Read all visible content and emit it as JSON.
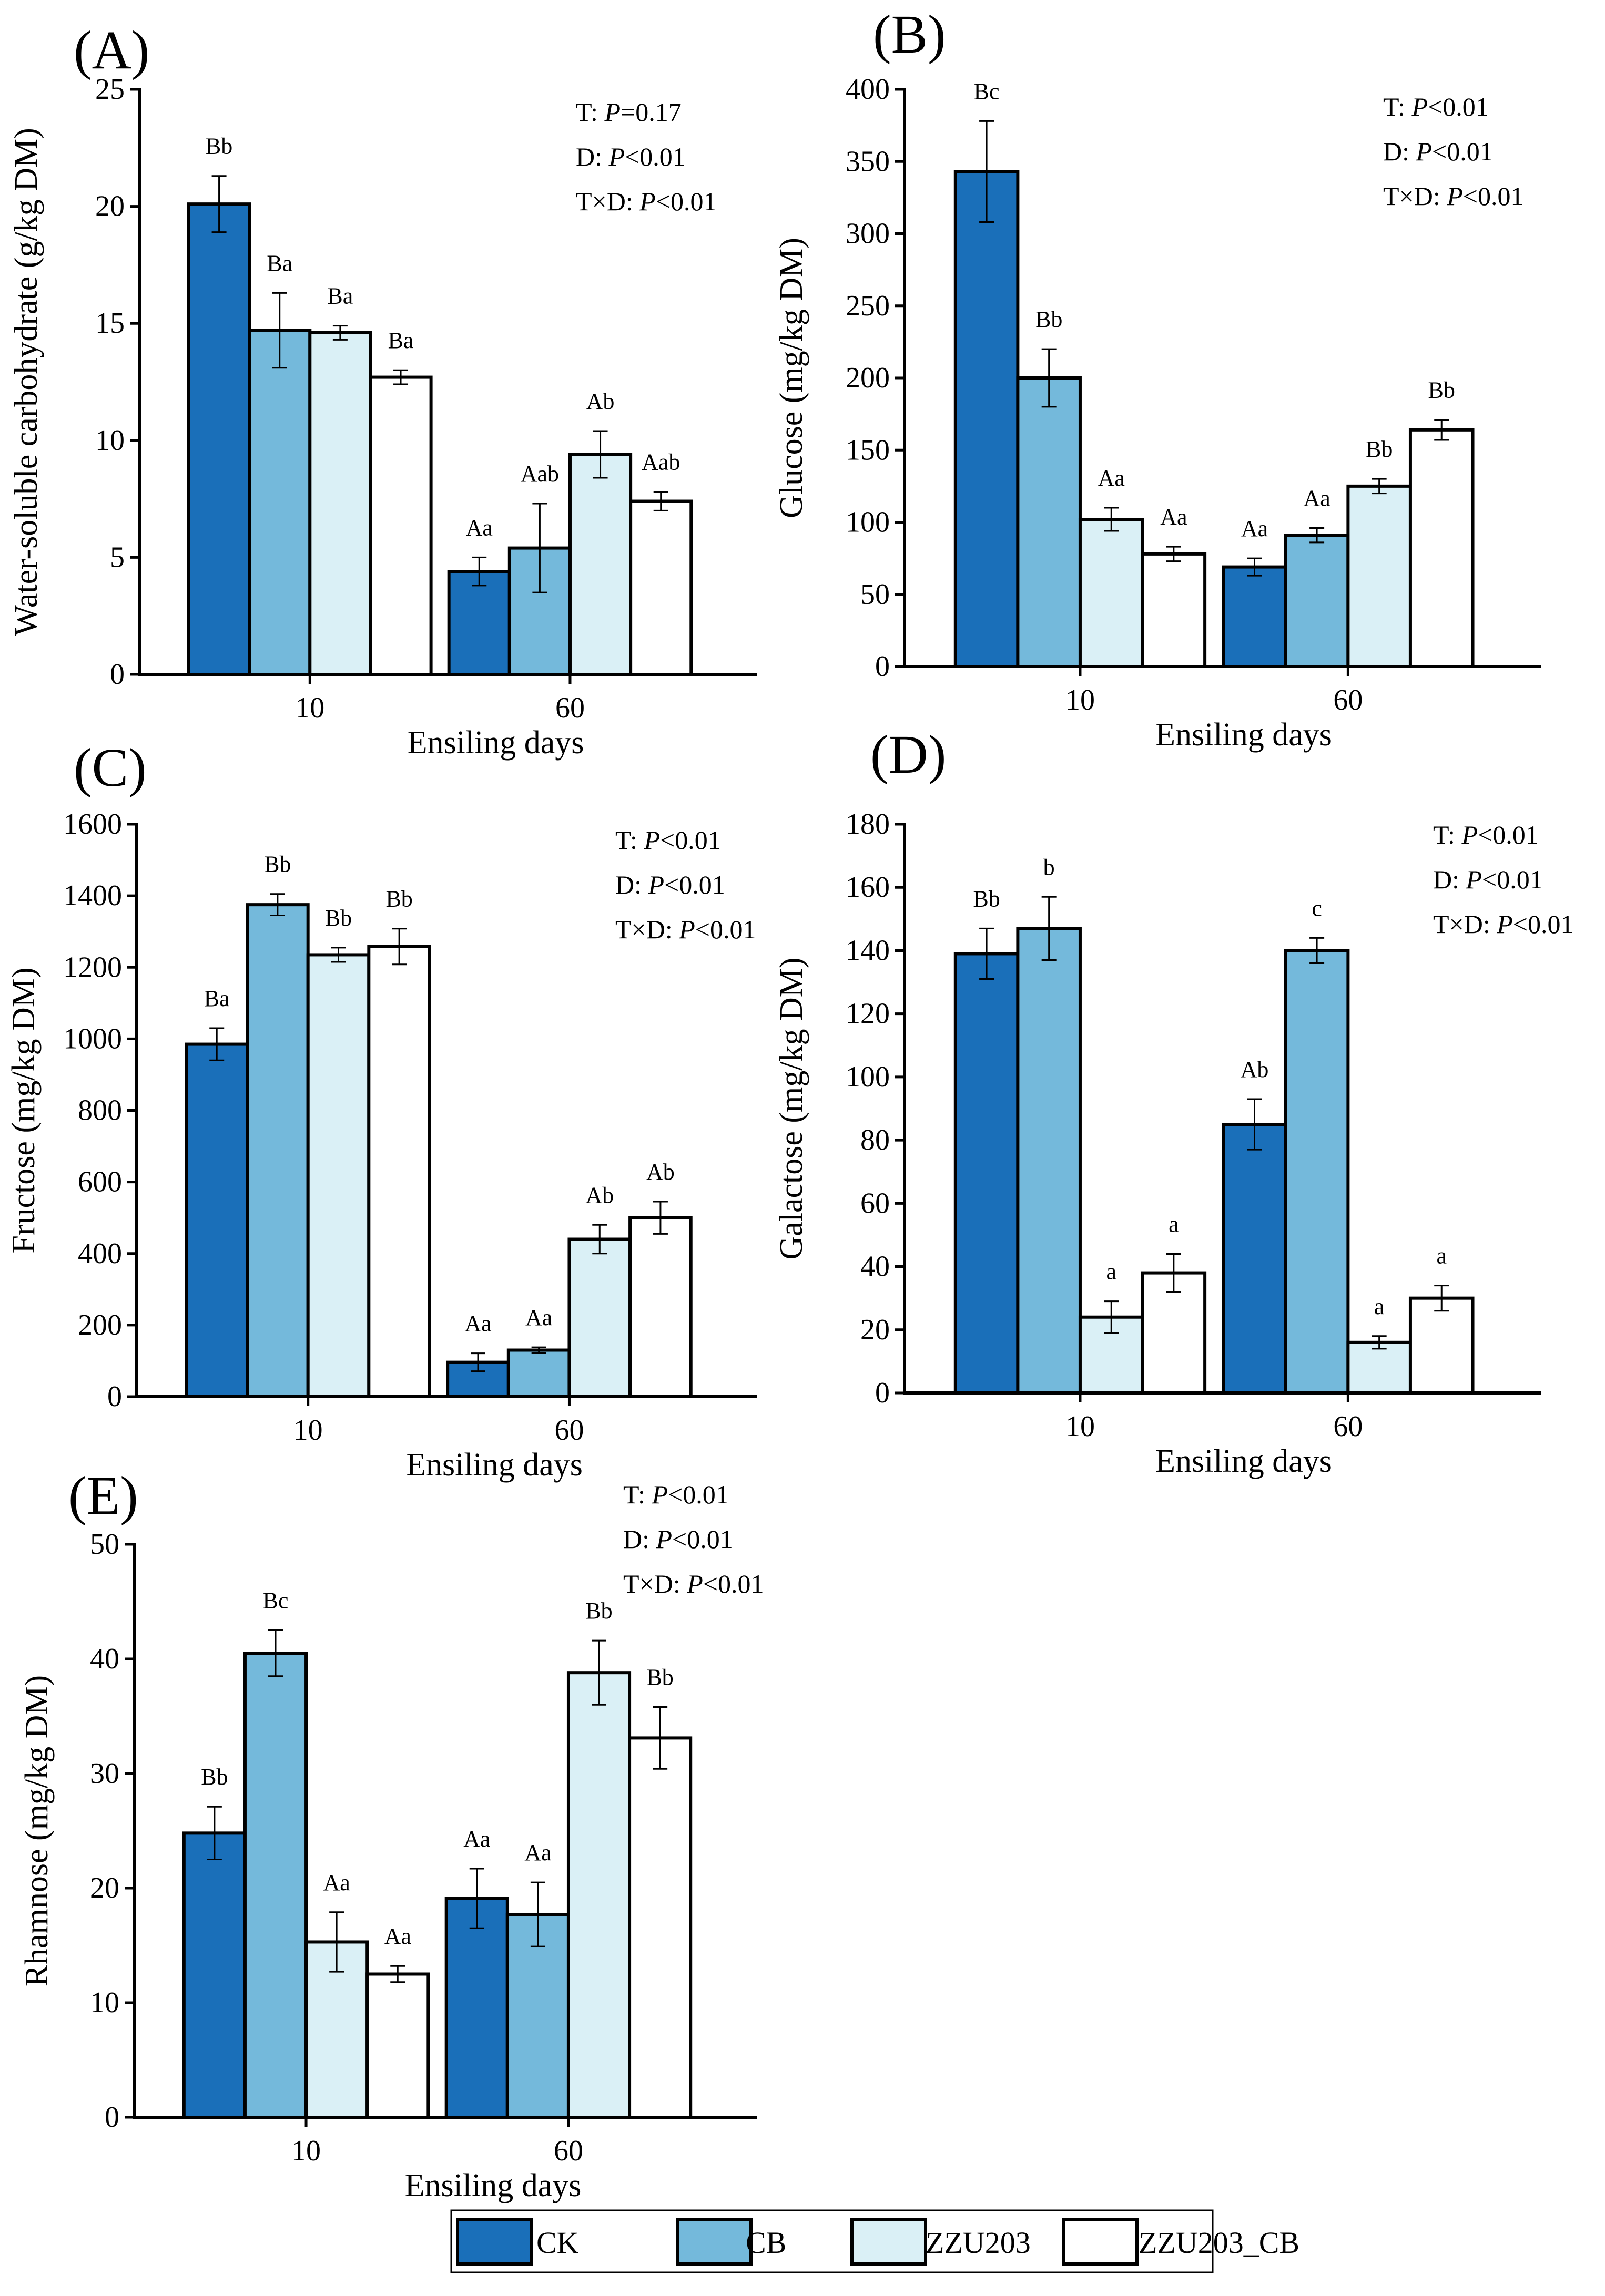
{
  "chart_data": [
    {
      "type": "bar",
      "panel": "(A)",
      "categories": [
        "10",
        "60"
      ],
      "xlabel": "Ensiling days",
      "ylabel": "Water-soluble carbohydrate (g/kg DM)",
      "ylim": [
        0,
        25
      ],
      "yticks": [
        0,
        5,
        10,
        15,
        20,
        25
      ],
      "stats": [
        {
          "prefix": "T: ",
          "p": "P",
          "suffix": "=0.17"
        },
        {
          "prefix": "D: ",
          "p": "P",
          "suffix": "<0.01"
        },
        {
          "prefix": "T×D: ",
          "p": "P",
          "suffix": "<0.01"
        }
      ],
      "series": [
        {
          "name": "CK",
          "values": [
            20.1,
            4.4
          ],
          "errors": [
            1.2,
            0.6
          ],
          "labels": [
            "Bb",
            "Aa"
          ]
        },
        {
          "name": "CB",
          "values": [
            14.7,
            5.4
          ],
          "errors": [
            1.6,
            1.9
          ],
          "labels": [
            "Ba",
            "Aab"
          ]
        },
        {
          "name": "ZZU203",
          "values": [
            14.6,
            9.4
          ],
          "errors": [
            0.3,
            1.0
          ],
          "labels": [
            "Ba",
            "Ab"
          ]
        },
        {
          "name": "ZZU203_CB",
          "values": [
            12.7,
            7.4
          ],
          "errors": [
            0.3,
            0.4
          ],
          "labels": [
            "Ba",
            "Aab"
          ]
        }
      ]
    },
    {
      "type": "bar",
      "panel": "(B)",
      "categories": [
        "10",
        "60"
      ],
      "xlabel": "Ensiling days",
      "ylabel": "Glucose (mg/kg DM)",
      "ylim": [
        0,
        400
      ],
      "yticks": [
        0,
        50,
        100,
        150,
        200,
        250,
        300,
        350,
        400
      ],
      "stats": [
        {
          "prefix": "T: ",
          "p": "P",
          "suffix": "<0.01"
        },
        {
          "prefix": "D: ",
          "p": "P",
          "suffix": "<0.01"
        },
        {
          "prefix": "T×D: ",
          "p": "P",
          "suffix": "<0.01"
        }
      ],
      "series": [
        {
          "name": "CK",
          "values": [
            343,
            69
          ],
          "errors": [
            35,
            6
          ],
          "labels": [
            "Bc",
            "Aa"
          ]
        },
        {
          "name": "CB",
          "values": [
            200,
            91
          ],
          "errors": [
            20,
            5
          ],
          "labels": [
            "Bb",
            "Aa"
          ]
        },
        {
          "name": "ZZU203",
          "values": [
            102,
            125
          ],
          "errors": [
            8,
            5
          ],
          "labels": [
            "Aa",
            "Bb"
          ]
        },
        {
          "name": "ZZU203_CB",
          "values": [
            78,
            164
          ],
          "errors": [
            5,
            7
          ],
          "labels": [
            "Aa",
            "Bb"
          ]
        }
      ]
    },
    {
      "type": "bar",
      "panel": "(C)",
      "categories": [
        "10",
        "60"
      ],
      "xlabel": "Ensiling days",
      "ylabel": "Fructose (mg/kg DM)",
      "ylim": [
        0,
        1600
      ],
      "yticks": [
        0,
        200,
        400,
        600,
        800,
        1000,
        1200,
        1400,
        1600
      ],
      "stats": [
        {
          "prefix": "T: ",
          "p": "P",
          "suffix": "<0.01"
        },
        {
          "prefix": "D: ",
          "p": "P",
          "suffix": "<0.01"
        },
        {
          "prefix": "T×D: ",
          "p": "P",
          "suffix": "<0.01"
        }
      ],
      "series": [
        {
          "name": "CK",
          "values": [
            985,
            96
          ],
          "errors": [
            45,
            25
          ],
          "labels": [
            "Ba",
            "Aa"
          ]
        },
        {
          "name": "CB",
          "values": [
            1375,
            130
          ],
          "errors": [
            30,
            8
          ],
          "labels": [
            "Bb",
            "Aa"
          ]
        },
        {
          "name": "ZZU203",
          "values": [
            1235,
            440
          ],
          "errors": [
            20,
            40
          ],
          "labels": [
            "Bb",
            "Ab"
          ]
        },
        {
          "name": "ZZU203_CB",
          "values": [
            1258,
            500
          ],
          "errors": [
            50,
            45
          ],
          "labels": [
            "Bb",
            "Ab"
          ]
        }
      ]
    },
    {
      "type": "bar",
      "panel": "(D)",
      "categories": [
        "10",
        "60"
      ],
      "xlabel": "Ensiling days",
      "ylabel": "Galactose (mg/kg DM)",
      "ylim": [
        0,
        180
      ],
      "yticks": [
        0,
        20,
        40,
        60,
        80,
        100,
        120,
        140,
        160,
        180
      ],
      "stats": [
        {
          "prefix": "T: ",
          "p": "P",
          "suffix": "<0.01"
        },
        {
          "prefix": "D: ",
          "p": "P",
          "suffix": "<0.01"
        },
        {
          "prefix": "T×D: ",
          "p": "P",
          "suffix": "<0.01"
        }
      ],
      "series": [
        {
          "name": "CK",
          "values": [
            139,
            85
          ],
          "errors": [
            8,
            8
          ],
          "labels": [
            "Bb",
            "Ab"
          ]
        },
        {
          "name": "CB",
          "values": [
            147,
            140
          ],
          "errors": [
            10,
            4
          ],
          "labels": [
            "b",
            "c"
          ]
        },
        {
          "name": "ZZU203",
          "values": [
            24,
            16
          ],
          "errors": [
            5,
            2
          ],
          "labels": [
            "a",
            "a"
          ]
        },
        {
          "name": "ZZU203_CB",
          "values": [
            38,
            30
          ],
          "errors": [
            6,
            4
          ],
          "labels": [
            "a",
            "a"
          ]
        }
      ]
    },
    {
      "type": "bar",
      "panel": "(E)",
      "categories": [
        "10",
        "60"
      ],
      "xlabel": "Ensiling days",
      "ylabel": "Rhamnose (mg/kg DM)",
      "ylim": [
        0,
        50
      ],
      "yticks": [
        0,
        10,
        20,
        30,
        40,
        50
      ],
      "stats": [
        {
          "prefix": "T: ",
          "p": "P",
          "suffix": "<0.01"
        },
        {
          "prefix": "D: ",
          "p": "P",
          "suffix": "<0.01"
        },
        {
          "prefix": "T×D: ",
          "p": "P",
          "suffix": "<0.01"
        }
      ],
      "series": [
        {
          "name": "CK",
          "values": [
            24.8,
            19.1
          ],
          "errors": [
            2.3,
            2.6
          ],
          "labels": [
            "Bb",
            "Aa"
          ]
        },
        {
          "name": "CB",
          "values": [
            40.5,
            17.7
          ],
          "errors": [
            2.0,
            2.8
          ],
          "labels": [
            "Bc",
            "Aa"
          ]
        },
        {
          "name": "ZZU203",
          "values": [
            15.3,
            38.8
          ],
          "errors": [
            2.6,
            2.8
          ],
          "labels": [
            "Aa",
            "Bb"
          ]
        },
        {
          "name": "ZZU203_CB",
          "values": [
            12.5,
            33.1
          ],
          "errors": [
            0.7,
            2.7
          ],
          "labels": [
            "Aa",
            "Bb"
          ]
        }
      ]
    }
  ],
  "legend": [
    {
      "name": "CK",
      "color": "#1a6fb9"
    },
    {
      "name": "CB",
      "color": "#74b9db"
    },
    {
      "name": "ZZU203",
      "color": "#daf0f6"
    },
    {
      "name": "ZZU203_CB",
      "color": "#ffffff"
    }
  ],
  "colors": {
    "CK": "#1a6fb9",
    "CB": "#74b9db",
    "ZZU203": "#daf0f6",
    "ZZU203_CB": "#ffffff"
  }
}
